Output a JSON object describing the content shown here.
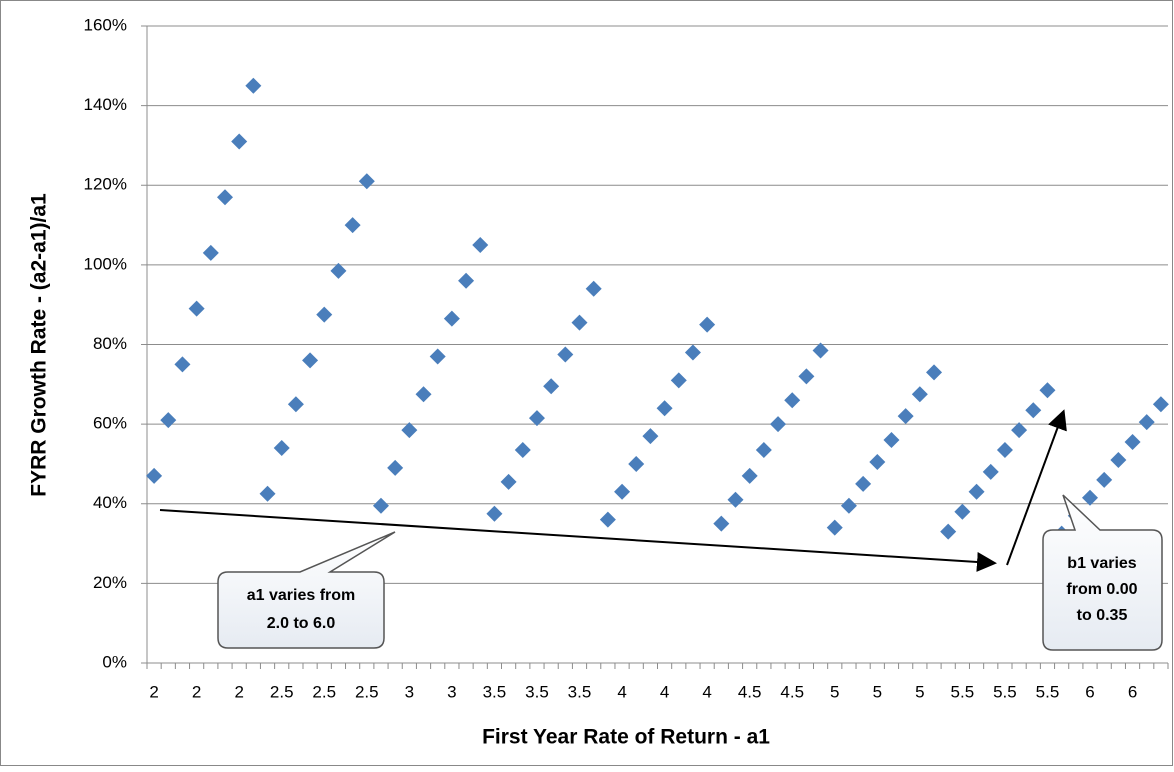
{
  "chart_data": {
    "type": "scatter",
    "x_label": "First Year Rate of Return - a1",
    "y_label": "FYRR Growth Rate - (a2-a1)/a1",
    "categories": [
      "2",
      null,
      null,
      "2",
      null,
      null,
      "2",
      null,
      null,
      "2.5",
      null,
      null,
      "2.5",
      null,
      null,
      "2.5",
      null,
      null,
      "3",
      null,
      null,
      "3",
      null,
      null,
      "3.5",
      null,
      null,
      "3.5",
      null,
      null,
      "3.5",
      null,
      null,
      "4",
      null,
      null,
      "4",
      null,
      null,
      "4",
      null,
      null,
      "4.5",
      null,
      null,
      "4.5",
      null,
      null,
      "5",
      null,
      null,
      "5",
      null,
      null,
      "5",
      null,
      null,
      "5.5",
      null,
      null,
      "5.5",
      null,
      null,
      "5.5",
      null,
      null,
      "6",
      null,
      null,
      "6",
      null,
      null
    ],
    "series": [
      {
        "color": "#4a7ebb",
        "values": [
          47,
          61,
          75,
          89,
          103,
          117,
          131,
          145,
          42.5,
          54,
          65,
          76,
          87.5,
          98.5,
          110,
          121,
          39.5,
          49,
          58.5,
          67.5,
          77,
          86.5,
          96,
          105,
          37.5,
          45.5,
          53.5,
          61.5,
          69.5,
          77.5,
          85.5,
          94,
          36,
          43,
          50,
          57,
          64,
          71,
          78,
          85,
          35,
          41,
          47,
          53.5,
          60,
          66,
          72,
          78.5,
          34,
          39.5,
          45,
          50.5,
          56,
          62,
          67.5,
          73,
          33,
          38,
          43,
          48,
          53.5,
          58.5,
          63.5,
          68.5,
          32.5,
          37,
          41.5,
          46,
          51,
          55.5,
          60.5,
          65
        ]
      }
    ],
    "ylim": [
      0,
      160
    ],
    "yticks": [
      {
        "value": 0,
        "label": "0%"
      },
      {
        "value": 20,
        "label": "20%"
      },
      {
        "value": 40,
        "label": "40%"
      },
      {
        "value": 60,
        "label": "60%"
      },
      {
        "value": 80,
        "label": "80%"
      },
      {
        "value": 100,
        "label": "100%"
      },
      {
        "value": 120,
        "label": "120%"
      },
      {
        "value": 140,
        "label": "140%"
      },
      {
        "value": 160,
        "label": "160%"
      }
    ],
    "grid": true,
    "annotations": [
      {
        "lines": [
          "a1 varies from",
          "2.0 to 6.0"
        ]
      },
      {
        "lines": [
          "b1 varies",
          "from 0.00",
          "to 0.35"
        ]
      }
    ]
  }
}
